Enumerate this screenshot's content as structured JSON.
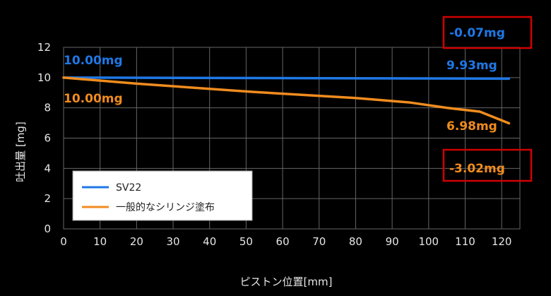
{
  "chart_data": {
    "type": "line",
    "title": "",
    "xlabel": "ピストン位置[mm]",
    "ylabel": "吐出量 [mg]",
    "xlim": [
      0,
      125
    ],
    "ylim": [
      0,
      12
    ],
    "xticks": [
      "0",
      "10",
      "20",
      "30",
      "40",
      "50",
      "60",
      "70",
      "80",
      "90",
      "100",
      "110",
      "120"
    ],
    "yticks": [
      "0",
      "2",
      "4",
      "6",
      "8",
      "10",
      "12"
    ],
    "grid": true,
    "legend_position": "bottom-left",
    "series": [
      {
        "name": "SV22",
        "color": "#1f78e6",
        "x": [
          0,
          122
        ],
        "y": [
          10.0,
          9.93
        ]
      },
      {
        "name": "一般的なシリンジ塗布",
        "color": "#f08c1e",
        "x": [
          0,
          20,
          52,
          80,
          95,
          105,
          114,
          122
        ],
        "y": [
          10.0,
          9.6,
          9.05,
          8.65,
          8.35,
          8.0,
          7.75,
          6.98
        ]
      }
    ],
    "annotations": {
      "sv22_start": "10.00mg",
      "sv22_end": "9.93mg",
      "sv22_diff": "-0.07mg",
      "syringe_start": "10.00mg",
      "syringe_end": "6.98mg",
      "syringe_diff": "-3.02mg"
    },
    "colors": {
      "background": "#000000",
      "grid": "#666666",
      "box": "#d10000",
      "text": "#e6e6e6"
    }
  }
}
